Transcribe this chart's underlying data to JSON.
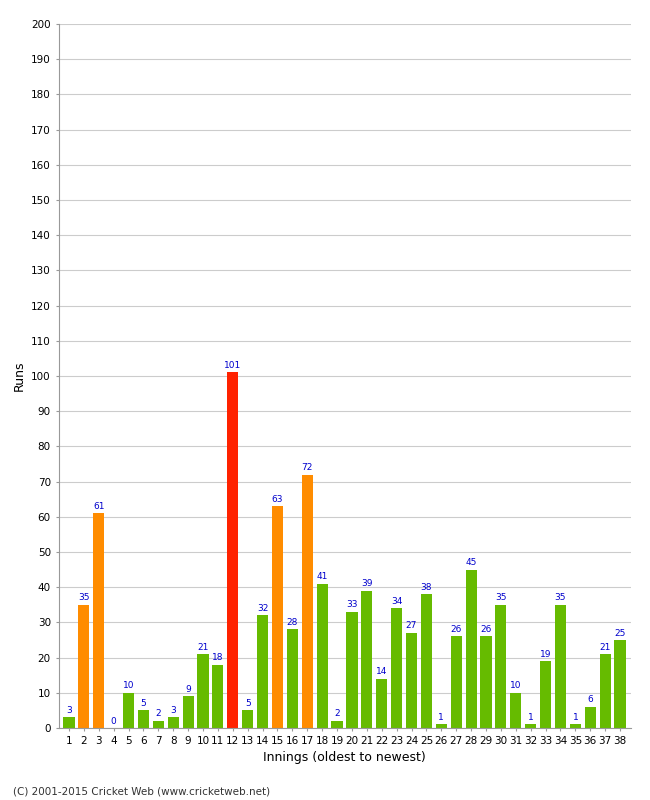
{
  "innings": [
    1,
    2,
    3,
    4,
    5,
    6,
    7,
    8,
    9,
    10,
    11,
    12,
    13,
    14,
    15,
    16,
    17,
    18,
    19,
    20,
    21,
    22,
    23,
    24,
    25,
    26,
    27,
    28,
    29,
    30,
    31,
    32,
    33,
    34,
    35,
    36,
    37,
    38
  ],
  "values": [
    3,
    35,
    61,
    0,
    10,
    5,
    2,
    3,
    9,
    21,
    18,
    101,
    5,
    32,
    63,
    28,
    72,
    41,
    2,
    33,
    39,
    14,
    34,
    27,
    38,
    1,
    26,
    45,
    26,
    35,
    10,
    1,
    19,
    35,
    1,
    6,
    21,
    25
  ],
  "colors": [
    "#66bb00",
    "#ff8c00",
    "#ff8c00",
    "#66bb00",
    "#66bb00",
    "#66bb00",
    "#66bb00",
    "#66bb00",
    "#66bb00",
    "#66bb00",
    "#66bb00",
    "#ff2200",
    "#66bb00",
    "#66bb00",
    "#ff8c00",
    "#66bb00",
    "#ff8c00",
    "#66bb00",
    "#66bb00",
    "#66bb00",
    "#66bb00",
    "#66bb00",
    "#66bb00",
    "#66bb00",
    "#66bb00",
    "#66bb00",
    "#66bb00",
    "#66bb00",
    "#66bb00",
    "#66bb00",
    "#66bb00",
    "#66bb00",
    "#66bb00",
    "#66bb00",
    "#66bb00",
    "#66bb00",
    "#66bb00",
    "#66bb00"
  ],
  "xlabel": "Innings (oldest to newest)",
  "ylabel": "Runs",
  "ylim": [
    0,
    200
  ],
  "yticks": [
    0,
    10,
    20,
    30,
    40,
    50,
    60,
    70,
    80,
    90,
    100,
    110,
    120,
    130,
    140,
    150,
    160,
    170,
    180,
    190,
    200
  ],
  "footnote": "(C) 2001-2015 Cricket Web (www.cricketweb.net)",
  "background_color": "#ffffff",
  "grid_color": "#cccccc",
  "label_color": "#0000cc"
}
